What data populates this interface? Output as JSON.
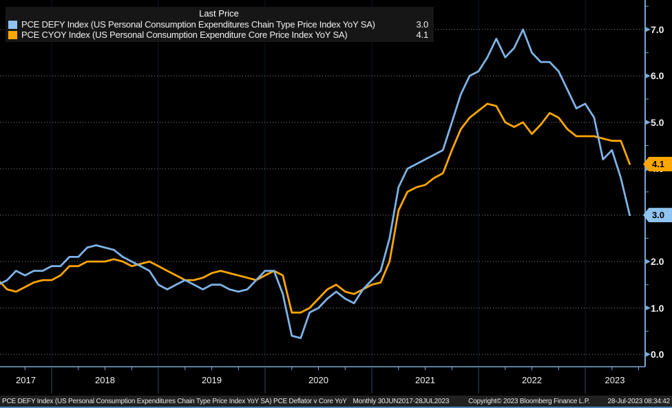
{
  "legend": {
    "title": "Last Price",
    "series": [
      {
        "label": "PCE DEFY Index (US Personal Consumption Expenditures Chain Type Price Index YoY SA)",
        "value": "3.0",
        "color": "#8fc3f0"
      },
      {
        "label": "PCE CYOY Index (US Personal Consumption Expenditure Core Price Index YoY SA)",
        "value": "4.1",
        "color": "#ffa700"
      }
    ]
  },
  "y_axis": {
    "labels": [
      "7.0",
      "6.0",
      "5.0",
      "4.0",
      "3.0",
      "2.0",
      "1.0",
      "0.0"
    ],
    "min": 0,
    "max": 7
  },
  "x_axis": {
    "years": [
      "2017",
      "2018",
      "2019",
      "2020",
      "2021",
      "2022",
      "2023"
    ]
  },
  "price_tags": [
    {
      "label": "4.1",
      "value": 4.1,
      "color": "#ffa700"
    },
    {
      "label": "3.0",
      "value": 3.0,
      "color": "#8fc3f0"
    }
  ],
  "footer": {
    "description": "PCE DEFY Index (US Personal Consumption Expenditures Chain Type Price Index YoY SA) PCE Deflator v Core YoY",
    "range": "Monthly 30JUN2017-28JUL2023",
    "copyright": "Copyright© 2023 Bloomberg Finance L.P.",
    "timestamp": "28-Jul-2023 08:34:42"
  },
  "chart_data": {
    "type": "line",
    "title": "Last Price",
    "frequency": "monthly",
    "x_start": "Jun 2017",
    "x_end": "Jun 2023",
    "x_year_labels": [
      "2017",
      "2018",
      "2019",
      "2020",
      "2021",
      "2022",
      "2023"
    ],
    "ylim": [
      0,
      7.5
    ],
    "y_ticks": [
      0,
      1,
      2,
      3,
      4,
      5,
      6,
      7
    ],
    "grid": "dotted-horizontal",
    "legend_position": "top-left",
    "axis_color": "#7aa9d6",
    "series": [
      {
        "name": "PCE DEFY Index (US Personal Consumption Expenditures Chain Type Price Index YoY SA)",
        "color": "#7eb3e7",
        "last_price": 3.0,
        "values": [
          1.5,
          1.5,
          1.6,
          1.8,
          1.7,
          1.8,
          1.8,
          1.9,
          1.9,
          2.1,
          2.1,
          2.3,
          2.35,
          2.3,
          2.25,
          2.1,
          2.0,
          1.9,
          1.8,
          1.5,
          1.4,
          1.5,
          1.6,
          1.5,
          1.4,
          1.5,
          1.5,
          1.4,
          1.35,
          1.4,
          1.6,
          1.8,
          1.8,
          1.3,
          0.4,
          0.35,
          0.9,
          1.0,
          1.2,
          1.35,
          1.2,
          1.1,
          1.4,
          1.6,
          1.8,
          2.5,
          3.6,
          4.0,
          4.1,
          4.2,
          4.3,
          4.4,
          5.0,
          5.6,
          6.0,
          6.1,
          6.4,
          6.8,
          6.4,
          6.6,
          7.0,
          6.5,
          6.3,
          6.3,
          6.1,
          5.7,
          5.3,
          5.4,
          5.1,
          4.2,
          4.4,
          3.8,
          3.0
        ]
      },
      {
        "name": "PCE CYOY Index (US Personal Consumption Expenditure Core Price Index YoY SA)",
        "color": "#ffa700",
        "last_price": 4.1,
        "values": [
          1.6,
          1.6,
          1.4,
          1.35,
          1.45,
          1.55,
          1.6,
          1.6,
          1.7,
          1.9,
          1.9,
          2.0,
          2.0,
          2.0,
          2.05,
          2.0,
          1.9,
          1.95,
          2.0,
          1.9,
          1.8,
          1.7,
          1.6,
          1.6,
          1.65,
          1.75,
          1.8,
          1.75,
          1.7,
          1.65,
          1.6,
          1.7,
          1.8,
          1.7,
          0.9,
          0.9,
          1.0,
          1.2,
          1.4,
          1.5,
          1.35,
          1.3,
          1.4,
          1.5,
          1.55,
          2.0,
          3.1,
          3.5,
          3.6,
          3.65,
          3.8,
          3.9,
          4.4,
          4.85,
          5.1,
          5.25,
          5.4,
          5.35,
          5.0,
          4.9,
          5.0,
          4.75,
          4.95,
          5.2,
          5.1,
          4.85,
          4.7,
          4.7,
          4.7,
          4.65,
          4.6,
          4.6,
          4.1
        ]
      }
    ]
  }
}
